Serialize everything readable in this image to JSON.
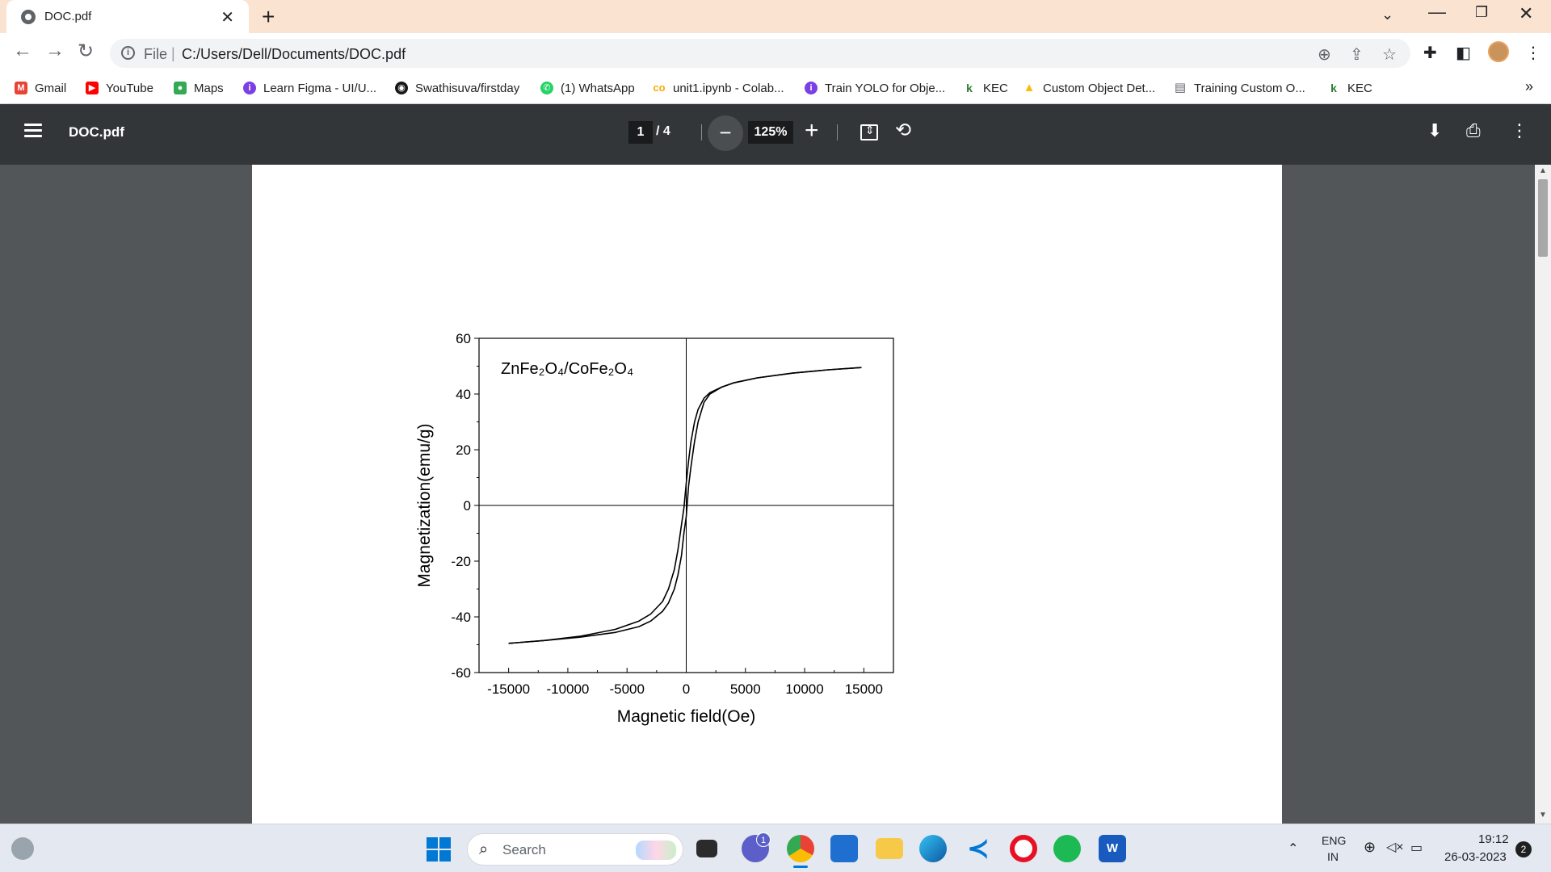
{
  "browser": {
    "tab_title": "DOC.pdf",
    "url_scheme": "File",
    "url": "C:/Users/Dell/Documents/DOC.pdf"
  },
  "bookmarks": [
    {
      "label": "Gmail",
      "icon": "gmail-icon",
      "color": "#ea4335"
    },
    {
      "label": "YouTube",
      "icon": "youtube-icon",
      "color": "#ff0000"
    },
    {
      "label": "Maps",
      "icon": "maps-icon",
      "color": "#34a853"
    },
    {
      "label": "Learn Figma - UI/U...",
      "icon": "figma-course-icon",
      "color": "#7b3fe4"
    },
    {
      "label": "Swathisuva/firstday",
      "icon": "github-icon",
      "color": "#181717"
    },
    {
      "label": "(1) WhatsApp",
      "icon": "whatsapp-icon",
      "color": "#25d366"
    },
    {
      "label": "unit1.ipynb - Colab...",
      "icon": "colab-icon",
      "color": "#f9ab00"
    },
    {
      "label": "Train YOLO for Obje...",
      "icon": "course-icon",
      "color": "#7b3fe4"
    },
    {
      "label": "KEC",
      "icon": "kec-icon",
      "color": "#2e7d32"
    },
    {
      "label": "Custom Object Det...",
      "icon": "drive-icon",
      "color": "#fbbc04"
    },
    {
      "label": "Training Custom O...",
      "icon": "document-icon",
      "color": "#5f6368"
    },
    {
      "label": "KEC",
      "icon": "kec-icon",
      "color": "#2e7d32"
    }
  ],
  "pdf_toolbar": {
    "title": "DOC.pdf",
    "current_page": "1",
    "total_pages": "/  4",
    "zoom": "125%"
  },
  "taskbar": {
    "search_placeholder": "Search",
    "language_line1": "ENG",
    "language_line2": "IN",
    "time": "19:12",
    "date": "26-03-2023",
    "notifications": "2",
    "teams_badge": "1"
  },
  "chart_data": {
    "type": "line",
    "annotation": "ZnFe₂O₄/CoFe₂O₄",
    "xlabel": "Magnetic field(Oe)",
    "ylabel": "Magnetization(emu/g)",
    "xlim": [
      -17500,
      17500
    ],
    "ylim": [
      -60,
      60
    ],
    "x_ticks": [
      "-15000",
      "-10000",
      "-5000",
      "0",
      "5000",
      "10000",
      "15000"
    ],
    "y_ticks": [
      "60",
      "40",
      "20",
      "0",
      "-20",
      "-40",
      "-60"
    ],
    "series": [
      {
        "x": [
          -15000,
          -12000,
          -9000,
          -6000,
          -4000,
          -3000,
          -2000,
          -1500,
          -1000,
          -700,
          -400,
          -200,
          0,
          200,
          400,
          700,
          1000,
          1500,
          2000,
          3000,
          4000,
          6000,
          9000,
          12000,
          14800
        ],
        "y": [
          -49.5,
          -48.5,
          -47,
          -44.5,
          -41.5,
          -39,
          -34.5,
          -30,
          -23,
          -16,
          -7,
          -1,
          8,
          16,
          23,
          30,
          34.5,
          38.5,
          40.5,
          42.5,
          44,
          45.8,
          47.5,
          48.7,
          49.5
        ]
      },
      {
        "x": [
          14800,
          12000,
          9000,
          6000,
          4000,
          3000,
          2000,
          1500,
          1000,
          700,
          400,
          200,
          0,
          -200,
          -400,
          -700,
          -1000,
          -1500,
          -2000,
          -3000,
          -4000,
          -6000,
          -9000,
          -12000,
          -15000
        ],
        "y": [
          49.5,
          48.7,
          47.5,
          45.8,
          44,
          42.5,
          40,
          37,
          30,
          23,
          14,
          7,
          -4,
          -10,
          -18,
          -25,
          -30,
          -35,
          -38,
          -41.5,
          -43.5,
          -45.6,
          -47.3,
          -48.5,
          -49.5
        ]
      }
    ]
  }
}
